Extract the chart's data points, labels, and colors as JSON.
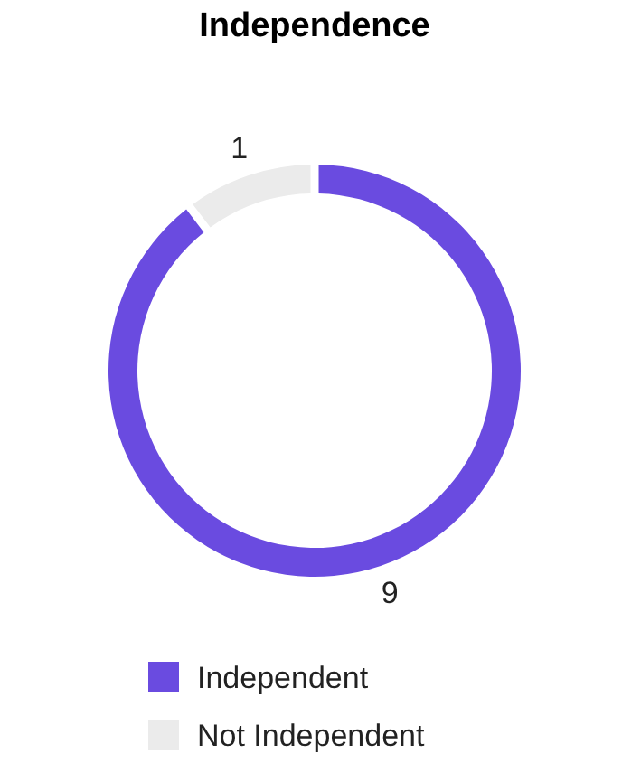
{
  "chart_data": {
    "type": "donut",
    "title": "Independence",
    "categories": [
      "Independent",
      "Not Independent"
    ],
    "values": [
      9,
      1
    ],
    "colors": [
      "#6a4be0",
      "#ebebeb"
    ],
    "data_labels": true,
    "legend": "bottom"
  }
}
